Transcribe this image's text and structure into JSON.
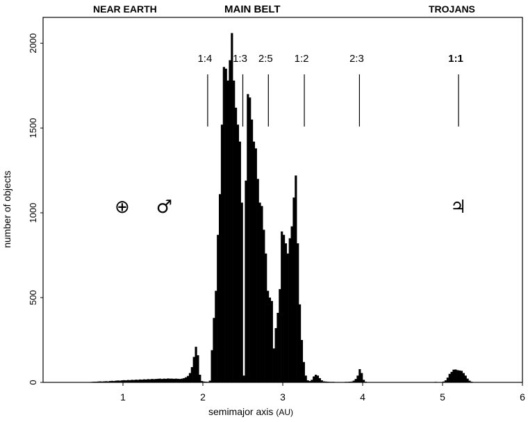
{
  "chart_data": {
    "type": "bar",
    "xlabel": "semimajor axis",
    "xlabel_unit": "(AU)",
    "ylabel": "number of objects",
    "xlim": [
      0,
      6
    ],
    "ylim": [
      0,
      2050
    ],
    "x_ticks": [
      1,
      2,
      3,
      4,
      5,
      6
    ],
    "y_ticks": [
      0,
      500,
      1000,
      1500,
      2000
    ],
    "region_labels": [
      "NEAR EARTH",
      "MAIN BELT",
      "TROJANS"
    ],
    "resonances": [
      {
        "label": "1:4",
        "x": 2.06
      },
      {
        "label": "1:3",
        "x": 2.5
      },
      {
        "label": "2:5",
        "x": 2.82
      },
      {
        "label": "1:2",
        "x": 3.27
      },
      {
        "label": "2:3",
        "x": 3.96
      },
      {
        "label": "1:1",
        "x": 5.2
      }
    ],
    "planet_symbols": [
      {
        "name": "earth-symbol",
        "glyph": "⊕",
        "x": 1.0,
        "y": 1020
      },
      {
        "name": "mars-symbol",
        "glyph": "♂",
        "x": 1.52,
        "y": 1020
      },
      {
        "name": "jupiter-symbol",
        "glyph": "♃",
        "x": 5.2,
        "y": 1020
      }
    ],
    "bin_width": 0.025,
    "bins": [
      [
        0.6,
        3
      ],
      [
        0.625,
        4
      ],
      [
        0.65,
        4
      ],
      [
        0.675,
        5
      ],
      [
        0.7,
        6
      ],
      [
        0.725,
        5
      ],
      [
        0.75,
        6
      ],
      [
        0.775,
        7
      ],
      [
        0.8,
        6
      ],
      [
        0.825,
        8
      ],
      [
        0.85,
        9
      ],
      [
        0.875,
        8
      ],
      [
        0.9,
        10
      ],
      [
        0.925,
        11
      ],
      [
        0.95,
        10
      ],
      [
        0.975,
        12
      ],
      [
        1.0,
        13
      ],
      [
        1.025,
        12
      ],
      [
        1.05,
        14
      ],
      [
        1.075,
        13
      ],
      [
        1.1,
        15
      ],
      [
        1.125,
        14
      ],
      [
        1.15,
        16
      ],
      [
        1.175,
        15
      ],
      [
        1.2,
        17
      ],
      [
        1.225,
        16
      ],
      [
        1.25,
        18
      ],
      [
        1.275,
        17
      ],
      [
        1.3,
        19
      ],
      [
        1.325,
        18
      ],
      [
        1.35,
        20
      ],
      [
        1.375,
        19
      ],
      [
        1.4,
        20
      ],
      [
        1.425,
        21
      ],
      [
        1.45,
        22
      ],
      [
        1.475,
        20
      ],
      [
        1.5,
        22
      ],
      [
        1.525,
        21
      ],
      [
        1.55,
        23
      ],
      [
        1.575,
        22
      ],
      [
        1.6,
        22
      ],
      [
        1.625,
        21
      ],
      [
        1.65,
        22
      ],
      [
        1.675,
        21
      ],
      [
        1.7,
        20
      ],
      [
        1.725,
        22
      ],
      [
        1.75,
        25
      ],
      [
        1.775,
        30
      ],
      [
        1.8,
        38
      ],
      [
        1.825,
        55
      ],
      [
        1.85,
        90
      ],
      [
        1.875,
        150
      ],
      [
        1.9,
        210
      ],
      [
        1.925,
        160
      ],
      [
        1.95,
        45
      ],
      [
        1.975,
        8
      ],
      [
        2.0,
        5
      ],
      [
        2.025,
        4
      ],
      [
        2.05,
        3
      ],
      [
        2.075,
        10
      ],
      [
        2.1,
        190
      ],
      [
        2.125,
        380
      ],
      [
        2.15,
        540
      ],
      [
        2.175,
        870
      ],
      [
        2.2,
        1110
      ],
      [
        2.225,
        1520
      ],
      [
        2.25,
        1860
      ],
      [
        2.275,
        1850
      ],
      [
        2.3,
        1780
      ],
      [
        2.325,
        1900
      ],
      [
        2.35,
        2060
      ],
      [
        2.375,
        1780
      ],
      [
        2.4,
        1620
      ],
      [
        2.425,
        1520
      ],
      [
        2.45,
        1420
      ],
      [
        2.475,
        1060
      ],
      [
        2.5,
        40
      ],
      [
        2.525,
        1190
      ],
      [
        2.55,
        1700
      ],
      [
        2.575,
        1680
      ],
      [
        2.6,
        1550
      ],
      [
        2.625,
        1420
      ],
      [
        2.65,
        1380
      ],
      [
        2.675,
        1200
      ],
      [
        2.7,
        1060
      ],
      [
        2.725,
        1040
      ],
      [
        2.75,
        900
      ],
      [
        2.775,
        760
      ],
      [
        2.8,
        540
      ],
      [
        2.825,
        500
      ],
      [
        2.85,
        480
      ],
      [
        2.875,
        200
      ],
      [
        2.9,
        320
      ],
      [
        2.925,
        410
      ],
      [
        2.95,
        550
      ],
      [
        2.975,
        890
      ],
      [
        3.0,
        870
      ],
      [
        3.025,
        820
      ],
      [
        3.05,
        760
      ],
      [
        3.075,
        850
      ],
      [
        3.1,
        920
      ],
      [
        3.125,
        1090
      ],
      [
        3.15,
        1220
      ],
      [
        3.175,
        820
      ],
      [
        3.2,
        460
      ],
      [
        3.225,
        250
      ],
      [
        3.25,
        120
      ],
      [
        3.275,
        40
      ],
      [
        3.3,
        12
      ],
      [
        3.325,
        8
      ],
      [
        3.35,
        15
      ],
      [
        3.375,
        35
      ],
      [
        3.4,
        45
      ],
      [
        3.425,
        40
      ],
      [
        3.45,
        25
      ],
      [
        3.475,
        12
      ],
      [
        3.5,
        6
      ],
      [
        3.525,
        5
      ],
      [
        3.55,
        4
      ],
      [
        3.575,
        3
      ],
      [
        3.6,
        3
      ],
      [
        3.625,
        3
      ],
      [
        3.65,
        2
      ],
      [
        3.675,
        2
      ],
      [
        3.7,
        2
      ],
      [
        3.725,
        2
      ],
      [
        3.75,
        2
      ],
      [
        3.775,
        3
      ],
      [
        3.8,
        3
      ],
      [
        3.825,
        4
      ],
      [
        3.85,
        5
      ],
      [
        3.875,
        10
      ],
      [
        3.9,
        20
      ],
      [
        3.925,
        40
      ],
      [
        3.95,
        78
      ],
      [
        3.975,
        55
      ],
      [
        4.0,
        15
      ],
      [
        4.025,
        4
      ],
      [
        4.05,
        2
      ],
      [
        4.1,
        2
      ],
      [
        4.2,
        1
      ],
      [
        4.3,
        1
      ],
      [
        4.4,
        1
      ],
      [
        4.5,
        1
      ],
      [
        4.6,
        1
      ],
      [
        4.7,
        1
      ],
      [
        4.8,
        2
      ],
      [
        4.9,
        3
      ],
      [
        5.0,
        5
      ],
      [
        5.025,
        12
      ],
      [
        5.05,
        28
      ],
      [
        5.075,
        50
      ],
      [
        5.1,
        62
      ],
      [
        5.125,
        75
      ],
      [
        5.15,
        76
      ],
      [
        5.175,
        72
      ],
      [
        5.2,
        70
      ],
      [
        5.225,
        68
      ],
      [
        5.25,
        55
      ],
      [
        5.275,
        40
      ],
      [
        5.3,
        22
      ],
      [
        5.325,
        10
      ],
      [
        5.35,
        4
      ],
      [
        5.375,
        2
      ]
    ]
  }
}
